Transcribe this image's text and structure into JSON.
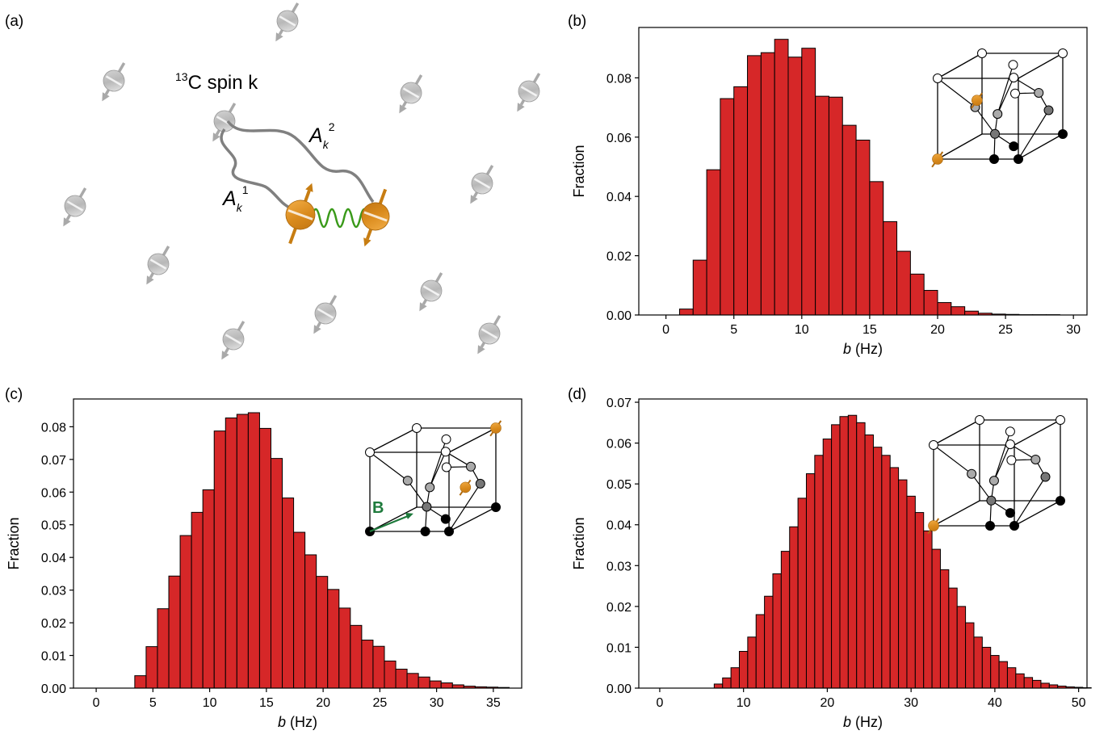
{
  "panel_labels": {
    "a": "(a)",
    "b": "(b)",
    "c": "(c)",
    "d": "(d)"
  },
  "schematic": {
    "spin_label_sup": "13",
    "spin_label_main": "C spin k",
    "coupling_1_main": "A",
    "coupling_1_sub": "k",
    "coupling_1_sup": "1",
    "coupling_2_main": "A",
    "coupling_2_sub": "k",
    "coupling_2_sup": "2",
    "colors": {
      "nuclear_spin": "#c8c8c8",
      "defect_spin": "#d9941e",
      "coupling": "#808080",
      "dipolar": "#3a9a1a"
    }
  },
  "inset_labels": {
    "field": "B"
  },
  "colors": {
    "bar": "#d62728",
    "bar_edge": "#000000",
    "field_arrow": "#1e7a3c"
  },
  "chart_data": [
    {
      "panel": "b",
      "type": "bar",
      "xlabel_italic": "b",
      "xlabel_rest": " (Hz)",
      "ylabel": "Fraction",
      "xlim": [
        -2,
        31
      ],
      "ylim": [
        0,
        0.097
      ],
      "xticks": [
        0,
        5,
        10,
        15,
        20,
        25,
        30
      ],
      "yticks": [
        0.0,
        0.02,
        0.04,
        0.06,
        0.08
      ],
      "ytick_decimals": 2,
      "bin_start": 1,
      "bin_width": 1,
      "values": [
        0.002,
        0.0185,
        0.049,
        0.073,
        0.077,
        0.0875,
        0.0885,
        0.093,
        0.087,
        0.09,
        0.0738,
        0.0735,
        0.064,
        0.059,
        0.045,
        0.0315,
        0.0215,
        0.0138,
        0.0083,
        0.0042,
        0.0028,
        0.0013,
        0.0006,
        0.0003,
        0.0002,
        0.0001,
        0.0001,
        0.0001
      ]
    },
    {
      "panel": "c",
      "type": "bar",
      "xlabel_italic": "b",
      "xlabel_rest": " (Hz)",
      "ylabel": "Fraction",
      "xlim": [
        -2,
        37.5
      ],
      "ylim": [
        0,
        0.0885
      ],
      "xticks": [
        0,
        5,
        10,
        15,
        20,
        25,
        30,
        35
      ],
      "yticks": [
        0.0,
        0.01,
        0.02,
        0.03,
        0.04,
        0.05,
        0.06,
        0.07,
        0.08
      ],
      "ytick_decimals": 2,
      "bin_start": 3.4,
      "bin_width": 1,
      "values": [
        0.0038,
        0.0127,
        0.0243,
        0.0343,
        0.0467,
        0.0538,
        0.0607,
        0.0787,
        0.0827,
        0.0838,
        0.0843,
        0.0795,
        0.0703,
        0.0582,
        0.0477,
        0.0408,
        0.0342,
        0.0302,
        0.0245,
        0.0192,
        0.0147,
        0.0128,
        0.0083,
        0.0058,
        0.0045,
        0.0034,
        0.0022,
        0.0016,
        0.001,
        0.0006,
        0.0004,
        0.0003,
        0.0002
      ]
    },
    {
      "panel": "d",
      "type": "bar",
      "xlabel_italic": "b",
      "xlabel_rest": " (Hz)",
      "ylabel": "Fraction",
      "xlim": [
        -2.5,
        51
      ],
      "ylim": [
        0,
        0.0708
      ],
      "xticks": [
        0,
        10,
        20,
        30,
        40,
        50
      ],
      "yticks": [
        0.0,
        0.01,
        0.02,
        0.03,
        0.04,
        0.05,
        0.06,
        0.07
      ],
      "ytick_decimals": 2,
      "bin_start": 6.5,
      "bin_width": 1,
      "values": [
        0.001,
        0.0025,
        0.005,
        0.009,
        0.0125,
        0.018,
        0.0225,
        0.028,
        0.0335,
        0.0395,
        0.0465,
        0.0525,
        0.057,
        0.061,
        0.0645,
        0.0665,
        0.0668,
        0.065,
        0.062,
        0.059,
        0.057,
        0.054,
        0.051,
        0.047,
        0.043,
        0.0385,
        0.034,
        0.029,
        0.0245,
        0.02,
        0.016,
        0.0125,
        0.01,
        0.008,
        0.0065,
        0.005,
        0.0035,
        0.0026,
        0.0019,
        0.0012,
        0.0008,
        0.0005,
        0.0003,
        0.0002,
        0.0001
      ]
    }
  ]
}
